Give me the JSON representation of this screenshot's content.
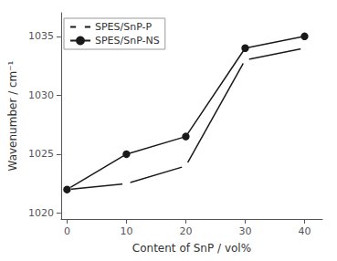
{
  "chart_data": {
    "type": "line",
    "x": [
      0,
      10,
      20,
      30,
      40
    ],
    "series": [
      {
        "name": "SPES/SnP-P",
        "color": "#1a1a1a",
        "marker": "open circle",
        "values": [
          1022,
          1022.5,
          1024,
          1033,
          1034
        ]
      },
      {
        "name": "SPES/SnP-NS",
        "color": "#1a1a1a",
        "marker": "filled circle",
        "values": [
          1022,
          1025,
          1026.5,
          1034,
          1035
        ]
      }
    ],
    "xlabel": "Content of SnP / vol%",
    "ylabel": "Wavenumber / cm⁻¹",
    "xlim": [
      -1,
      43
    ],
    "ylim": [
      1019.5,
      1037
    ],
    "xticks": [
      0,
      10,
      20,
      30,
      40
    ],
    "yticks": [
      1020,
      1025,
      1030,
      1035
    ],
    "legend": "upper left",
    "grid": false
  }
}
